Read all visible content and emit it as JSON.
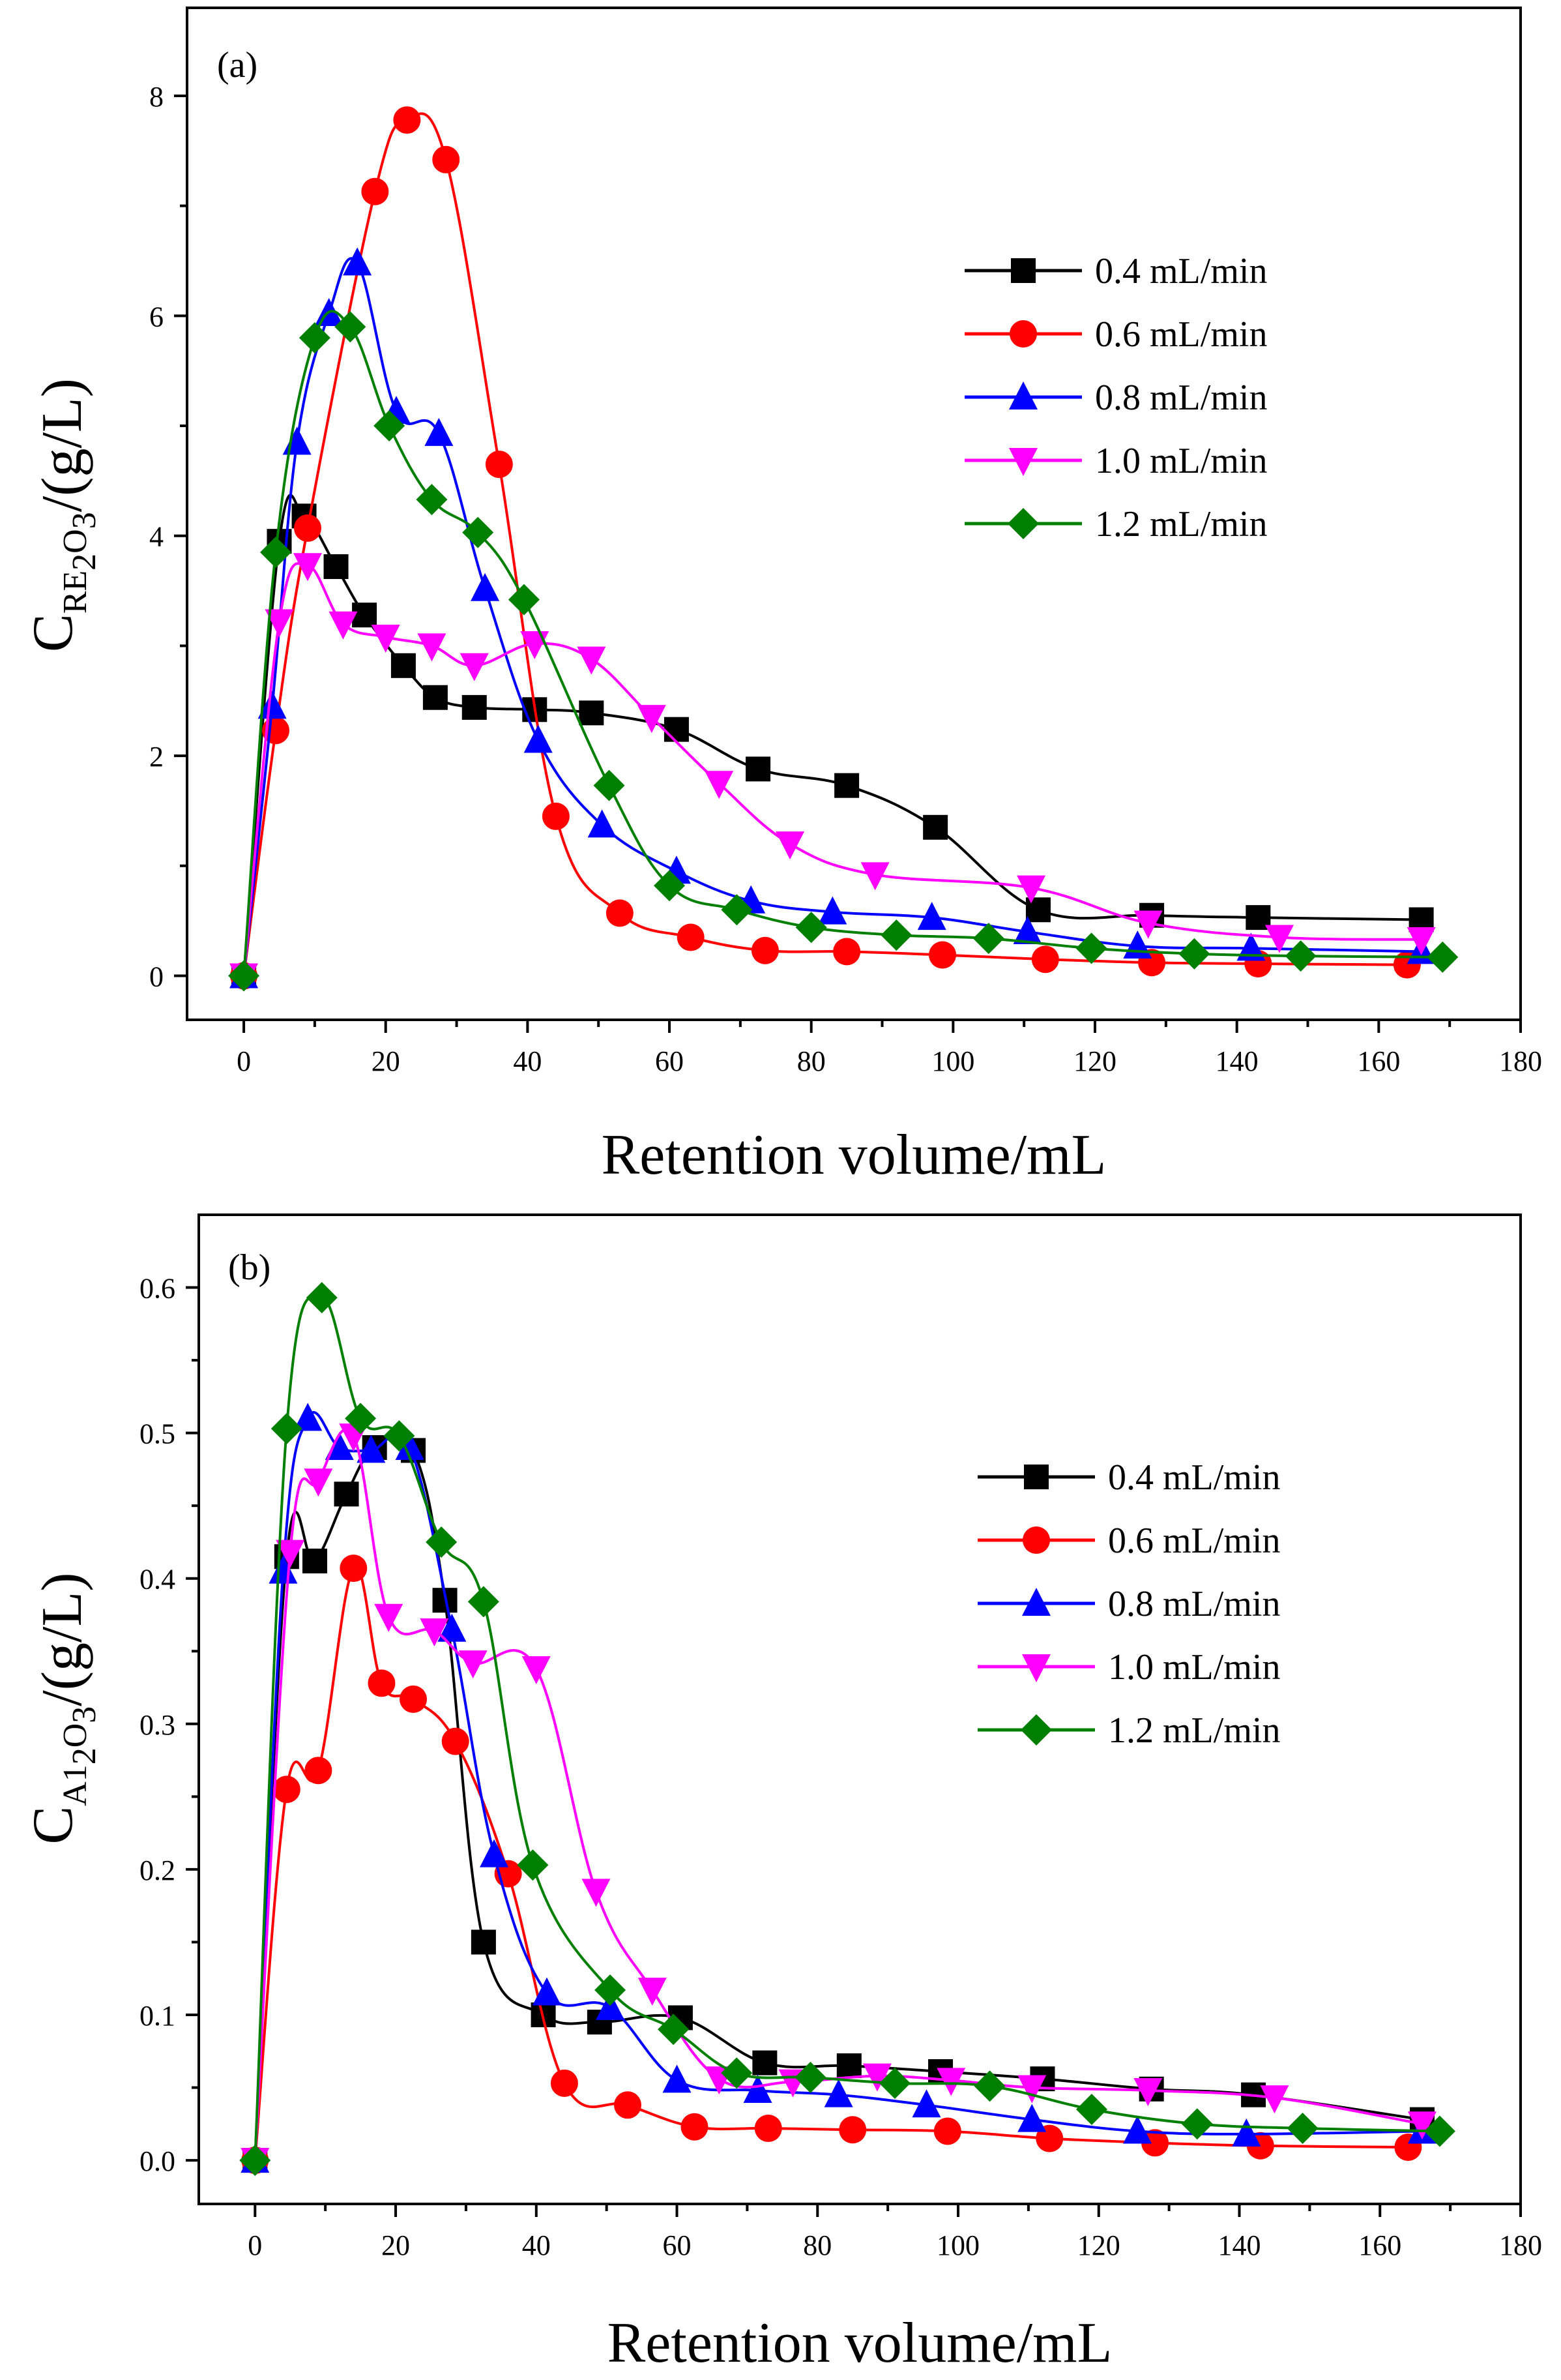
{
  "colors": {
    "s04": "#000000",
    "s06": "#ff0000",
    "s08": "#0000ff",
    "s10": "#ff00ff",
    "s12": "#007f00"
  },
  "chart_data": [
    {
      "type": "line",
      "panel_label": "(a)",
      "xlabel": "Retention volume/mL",
      "ylabel": {
        "main": "C",
        "sub_parts": [
          {
            "t": "RE",
            "sub": false
          },
          {
            "t": "2",
            "sub": true
          },
          {
            "t": "O",
            "sub": false
          },
          {
            "t": "3",
            "sub": true
          }
        ],
        "unit": "/(g/L)"
      },
      "xlim": [
        -8,
        180
      ],
      "ylim": [
        -0.4,
        8.8
      ],
      "xticks": [
        0,
        20,
        40,
        60,
        80,
        100,
        120,
        140,
        160,
        180
      ],
      "yticks": [
        0,
        2,
        4,
        6,
        8
      ],
      "ytick_labels": [
        "0",
        "2",
        "4",
        "6",
        "8"
      ],
      "legend_position": "upper-right",
      "series": [
        {
          "name": "0.4 mL/min",
          "marker": "square",
          "color_key": "s04",
          "x": [
            0,
            5,
            8.5,
            13,
            17,
            22.5,
            27,
            32.5,
            41,
            49,
            61,
            72.5,
            85,
            97.5,
            112,
            128,
            143,
            166
          ],
          "y": [
            0,
            3.95,
            4.18,
            3.72,
            3.28,
            2.82,
            2.53,
            2.44,
            2.42,
            2.39,
            2.24,
            1.88,
            1.73,
            1.35,
            0.6,
            0.55,
            0.53,
            0.51
          ]
        },
        {
          "name": "0.6 mL/min",
          "marker": "circle",
          "color_key": "s06",
          "x": [
            0,
            4.5,
            9,
            18.5,
            23,
            28.5,
            36,
            44,
            53,
            63,
            73.5,
            85,
            98.5,
            113,
            128,
            143,
            164
          ],
          "y": [
            0,
            2.23,
            4.07,
            7.13,
            7.78,
            7.42,
            4.65,
            1.45,
            0.57,
            0.35,
            0.23,
            0.22,
            0.19,
            0.15,
            0.12,
            0.11,
            0.1
          ]
        },
        {
          "name": "0.8 mL/min",
          "marker": "triangle-up",
          "color_key": "s08",
          "x": [
            0,
            4,
            7.5,
            12,
            16,
            21.5,
            27.5,
            34,
            41.5,
            50.5,
            61,
            71.5,
            83,
            97,
            110.5,
            126,
            142,
            166
          ],
          "y": [
            0,
            2.45,
            4.85,
            6.02,
            6.48,
            5.13,
            4.93,
            3.52,
            2.14,
            1.37,
            0.95,
            0.68,
            0.58,
            0.53,
            0.4,
            0.27,
            0.25,
            0.22
          ]
        },
        {
          "name": "1.0 mL/min",
          "marker": "triangle-down",
          "color_key": "s10",
          "x": [
            0,
            5,
            9,
            14,
            20,
            26.5,
            32.5,
            41,
            49,
            57.5,
            67,
            77,
            89,
            111,
            127.5,
            146,
            166
          ],
          "y": [
            0,
            3.22,
            3.73,
            3.2,
            3.08,
            3.0,
            2.82,
            3.02,
            2.88,
            2.35,
            1.75,
            1.2,
            0.92,
            0.8,
            0.48,
            0.35,
            0.33
          ]
        },
        {
          "name": "1.2 mL/min",
          "marker": "diamond",
          "color_key": "s12",
          "x": [
            0,
            4.5,
            10,
            15,
            20.5,
            26.5,
            33,
            39.5,
            51.5,
            60,
            69.5,
            80,
            92,
            105,
            119.5,
            134,
            149,
            169
          ],
          "y": [
            0,
            3.85,
            5.8,
            5.9,
            5.0,
            4.33,
            4.03,
            3.42,
            1.73,
            0.82,
            0.6,
            0.44,
            0.37,
            0.34,
            0.25,
            0.2,
            0.18,
            0.17
          ]
        }
      ]
    },
    {
      "type": "line",
      "panel_label": "(b)",
      "xlabel": "Retention volume/mL",
      "ylabel": {
        "main": "C",
        "sub_parts": [
          {
            "t": "A1",
            "sub": false
          },
          {
            "t": "2",
            "sub": true
          },
          {
            "t": "O",
            "sub": false
          },
          {
            "t": "3",
            "sub": true
          }
        ],
        "unit": "/(g/L)"
      },
      "xlim": [
        -8,
        180
      ],
      "ylim": [
        -0.03,
        0.65
      ],
      "xticks": [
        0,
        20,
        40,
        60,
        80,
        100,
        120,
        140,
        160,
        180
      ],
      "yticks": [
        0.0,
        0.1,
        0.2,
        0.3,
        0.4,
        0.5,
        0.6
      ],
      "ytick_labels": [
        "0.0",
        "0.1",
        "0.2",
        "0.3",
        "0.4",
        "0.5",
        "0.6"
      ],
      "legend_position": "upper-right",
      "series": [
        {
          "name": "0.4 mL/min",
          "marker": "square",
          "color_key": "s04",
          "x": [
            0,
            4.5,
            8.5,
            13,
            17,
            22.5,
            27,
            32.5,
            41,
            49,
            60.5,
            72.5,
            84.5,
            97.5,
            112,
            127.5,
            142,
            166
          ],
          "y": [
            0,
            0.415,
            0.412,
            0.458,
            0.49,
            0.488,
            0.385,
            0.15,
            0.1,
            0.095,
            0.098,
            0.067,
            0.065,
            0.061,
            0.056,
            0.049,
            0.045,
            0.028
          ]
        },
        {
          "name": "0.6 mL/min",
          "marker": "circle",
          "color_key": "s06",
          "x": [
            0,
            4.5,
            9,
            14,
            18,
            22.5,
            28.5,
            36,
            44,
            53,
            62.5,
            73,
            85,
            98.5,
            113,
            128,
            143,
            164
          ],
          "y": [
            0,
            0.255,
            0.268,
            0.407,
            0.328,
            0.317,
            0.288,
            0.197,
            0.053,
            0.038,
            0.023,
            0.022,
            0.021,
            0.02,
            0.015,
            0.012,
            0.01,
            0.009
          ]
        },
        {
          "name": "0.8 mL/min",
          "marker": "triangle-up",
          "color_key": "s08",
          "x": [
            0,
            4,
            7.5,
            12,
            16.5,
            22,
            28,
            34,
            41.5,
            50.5,
            60,
            71.5,
            83,
            95.5,
            110.5,
            125.5,
            141,
            166
          ],
          "y": [
            0,
            0.405,
            0.51,
            0.49,
            0.488,
            0.49,
            0.365,
            0.21,
            0.115,
            0.105,
            0.055,
            0.048,
            0.045,
            0.038,
            0.028,
            0.02,
            0.018,
            0.02
          ]
        },
        {
          "name": "1.0 mL/min",
          "marker": "triangle-down",
          "color_key": "s10",
          "x": [
            0,
            5,
            9,
            14,
            19,
            25.5,
            31,
            40,
            48.5,
            56.5,
            66,
            76.5,
            88.5,
            99,
            110.5,
            127,
            145,
            166
          ],
          "y": [
            0,
            0.418,
            0.467,
            0.498,
            0.374,
            0.364,
            0.342,
            0.338,
            0.185,
            0.117,
            0.056,
            0.054,
            0.058,
            0.055,
            0.05,
            0.048,
            0.043,
            0.025
          ]
        },
        {
          "name": "1.2 mL/min",
          "marker": "diamond",
          "color_key": "s12",
          "x": [
            0,
            4.5,
            9.5,
            15,
            20.5,
            26.5,
            32.5,
            39.5,
            50.5,
            59.5,
            68.5,
            79,
            91,
            104.5,
            119,
            134,
            149,
            168.5
          ],
          "y": [
            0,
            0.503,
            0.593,
            0.51,
            0.498,
            0.425,
            0.384,
            0.203,
            0.117,
            0.09,
            0.06,
            0.057,
            0.053,
            0.051,
            0.035,
            0.025,
            0.022,
            0.02
          ]
        }
      ]
    }
  ]
}
